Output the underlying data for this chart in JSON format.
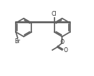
{
  "line_color": "#606060",
  "line_width": 1.3,
  "text_color": "#202020",
  "figsize": [
    1.38,
    1.11
  ],
  "dpi": 100,
  "xlim": [
    -0.5,
    7.5
  ],
  "ylim": [
    -3.8,
    2.6
  ]
}
